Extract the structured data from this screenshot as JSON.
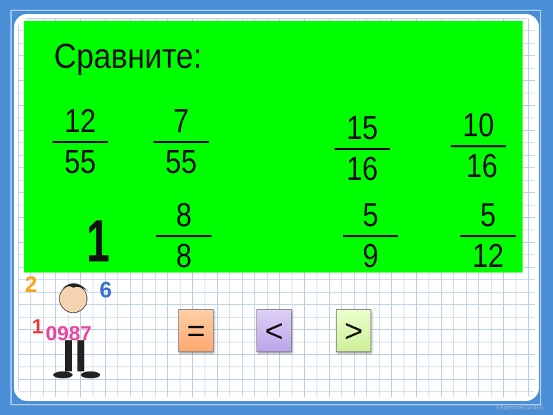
{
  "title": "Сравните:",
  "fractions": [
    {
      "n": "12",
      "d": "55"
    },
    {
      "n": "7",
      "d": "55"
    },
    {
      "n": "15",
      "d": "16"
    },
    {
      "n": "10",
      "d": "16"
    },
    {
      "n": "8",
      "d": "8"
    },
    {
      "n": "5",
      "d": "9"
    },
    {
      "n": "5",
      "d": "12"
    }
  ],
  "whole": "1",
  "buttons": {
    "equal": "=",
    "less": "<",
    "greater": ">"
  },
  "colors": {
    "background": "#4a8ed6",
    "panel": "#00ff00",
    "equal": "#ffbb88",
    "less": "#c9b3ee",
    "greater": "#d8f5a8"
  },
  "watermark": "Ekaterina050466"
}
